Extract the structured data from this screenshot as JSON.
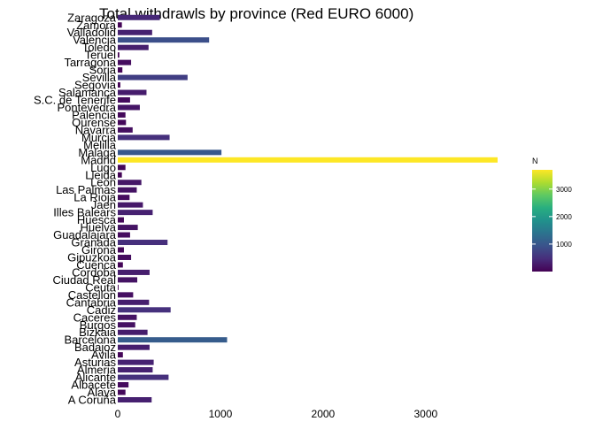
{
  "chart_data": {
    "type": "bar",
    "orientation": "horizontal",
    "title": "Total withdrawls by  province (Red EURO 6000)",
    "xlabel": "",
    "ylabel": "",
    "xlim": [
      0,
      3700
    ],
    "xticks": [
      0,
      1000,
      2000,
      3000
    ],
    "grid": false,
    "categories": [
      "A Coruña",
      "Alava",
      "Albacete",
      "Alicante",
      "Almeria",
      "Asturias",
      "Avila",
      "Badajoz",
      "Barcelona",
      "Bizkaia",
      "Burgos",
      "Caceres",
      "Cadiz",
      "Cantabria",
      "Castellon",
      "Ceuta",
      "Ciudad Real",
      "Cordoba",
      "Cuenca",
      "Gipuzkoa",
      "Girona",
      "Granada",
      "Guadalajara",
      "Huelva",
      "Huesca",
      "Illes Balears",
      "Jaen",
      "La Rioja",
      "Las Palmas",
      "Leon",
      "Lleida",
      "Lugo",
      "Madrid",
      "Malaga",
      "Melilla",
      "Murcia",
      "Navarra",
      "Ourense",
      "Palencia",
      "Pontevedra",
      "S.C. de Tenerife",
      "Salamanca",
      "Segovia",
      "Sevilla",
      "Soria",
      "Tarragona",
      "Teruel",
      "Toledo",
      "Valencia",
      "Valladolid",
      "Zamora",
      "Zaragoza"
    ],
    "values": [
      330,
      75,
      105,
      495,
      340,
      350,
      50,
      310,
      1065,
      290,
      170,
      185,
      515,
      305,
      150,
      8,
      190,
      310,
      50,
      130,
      60,
      485,
      120,
      195,
      60,
      340,
      245,
      115,
      185,
      230,
      40,
      75,
      3700,
      1010,
      0,
      505,
      145,
      80,
      75,
      215,
      120,
      280,
      25,
      680,
      45,
      130,
      15,
      300,
      890,
      335,
      40,
      410
    ],
    "legend": {
      "title": "N",
      "ticks": [
        1000,
        2000,
        3000
      ],
      "range": [
        0,
        3700
      ],
      "colormap": "viridis",
      "placement": "right"
    }
  }
}
